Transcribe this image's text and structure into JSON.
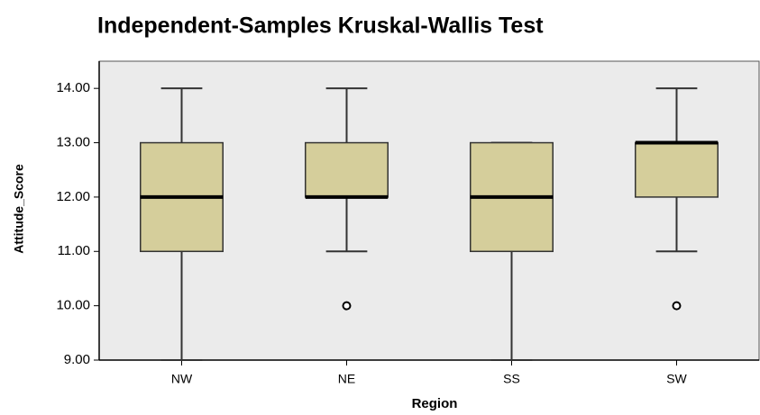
{
  "chart_data": {
    "type": "box",
    "title": "Independent-Samples Kruskal-Wallis Test",
    "x_label": "Region",
    "y_label": "Attitude_Score",
    "categories": [
      "NW",
      "NE",
      "SS",
      "SW"
    ],
    "boxes": [
      {
        "min": 9,
        "q1": 11,
        "median": 12,
        "q3": 13,
        "max": 14,
        "outliers": []
      },
      {
        "min": 11,
        "q1": 12,
        "median": 12,
        "q3": 13,
        "max": 14,
        "outliers": [
          10
        ]
      },
      {
        "min": 9,
        "q1": 11,
        "median": 12,
        "q3": 13,
        "max": 13,
        "outliers": []
      },
      {
        "min": 11,
        "q1": 12,
        "median": 13,
        "q3": 13,
        "max": 14,
        "outliers": [
          10
        ]
      }
    ],
    "color": "#d5ce9b",
    "ylim": [
      9,
      14.5
    ],
    "yticks": [
      {
        "value": 9,
        "label": "9.00"
      },
      {
        "value": 10,
        "label": "10.00"
      },
      {
        "value": 11,
        "label": "11.00"
      },
      {
        "value": 12,
        "label": "12.00"
      },
      {
        "value": 13,
        "label": "13.00"
      },
      {
        "value": 14,
        "label": "14.00"
      }
    ]
  }
}
